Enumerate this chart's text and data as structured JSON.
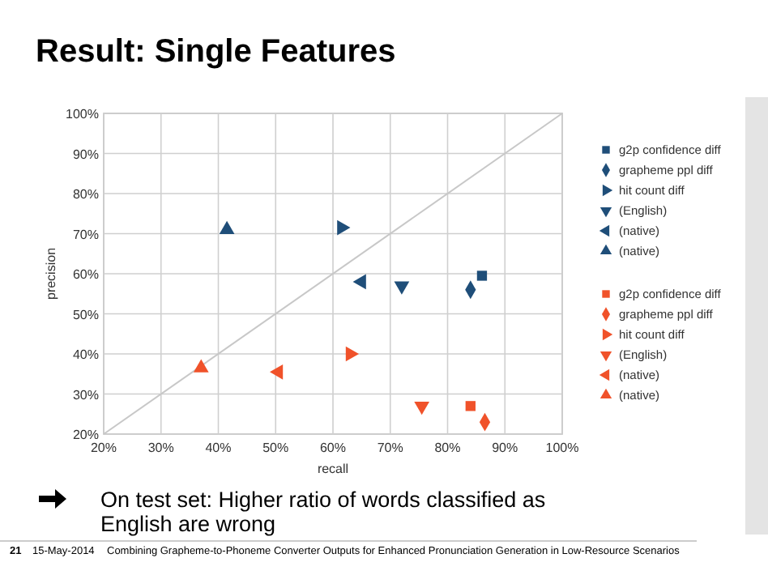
{
  "chart_data": {
    "type": "scatter",
    "title": "Result: Single Features",
    "xlabel": "recall",
    "ylabel": "precision",
    "xlim": [
      20,
      100
    ],
    "ylim": [
      20,
      100
    ],
    "xticks": [
      {
        "value": 20,
        "label": "20%"
      },
      {
        "value": 30,
        "label": "30%"
      },
      {
        "value": 40,
        "label": "40%"
      },
      {
        "value": 50,
        "label": "50%"
      },
      {
        "value": 60,
        "label": "60%"
      },
      {
        "value": 70,
        "label": "70%"
      },
      {
        "value": 80,
        "label": "80%"
      },
      {
        "value": 90,
        "label": "90%"
      },
      {
        "value": 100,
        "label": "100%"
      }
    ],
    "yticks": [
      {
        "value": 20,
        "label": "20%"
      },
      {
        "value": 30,
        "label": "30%"
      },
      {
        "value": 40,
        "label": "40%"
      },
      {
        "value": 50,
        "label": "50%"
      },
      {
        "value": 60,
        "label": "60%"
      },
      {
        "value": 70,
        "label": "70%"
      },
      {
        "value": 80,
        "label": "80%"
      },
      {
        "value": 90,
        "label": "90%"
      },
      {
        "value": 100,
        "label": "100%"
      }
    ],
    "grid": true,
    "legend": "right",
    "series": [
      {
        "type": "line",
        "color": "#c8c8c8",
        "x": [
          20,
          100
        ],
        "values": [
          20,
          100
        ],
        "marker": "none"
      },
      {
        "name": "g2p confidence diff",
        "color": "#1f4e79",
        "x": [
          86
        ],
        "values": [
          59.5
        ],
        "marker": "square"
      },
      {
        "name": "grapheme ppl diff",
        "color": "#1f4e79",
        "x": [
          84
        ],
        "values": [
          56
        ],
        "marker": "diamond"
      },
      {
        "name": "hit count diff",
        "color": "#1f4e79",
        "x": [
          61.5
        ],
        "values": [
          71.5
        ],
        "marker": "triangle-right"
      },
      {
        "name": "(English)",
        "color": "#1f4e79",
        "x": [
          72
        ],
        "values": [
          57
        ],
        "marker": "triangle-down"
      },
      {
        "name": "(native)",
        "color": "#1f4e79",
        "x": [
          65
        ],
        "values": [
          58
        ],
        "marker": "triangle-left"
      },
      {
        "name": "(native)",
        "color": "#1f4e79",
        "x": [
          41.5
        ],
        "values": [
          71
        ],
        "marker": "triangle"
      },
      {
        "name": "g2p confidence diff",
        "color": "#f0522a",
        "x": [
          84
        ],
        "values": [
          27
        ],
        "marker": "square"
      },
      {
        "name": "grapheme ppl diff",
        "color": "#f0522a",
        "x": [
          86.5
        ],
        "values": [
          23
        ],
        "marker": "diamond"
      },
      {
        "name": "hit count diff",
        "color": "#f0522a",
        "x": [
          63
        ],
        "values": [
          40
        ],
        "marker": "triangle-right"
      },
      {
        "name": "(English)",
        "color": "#f0522a",
        "x": [
          75.5
        ],
        "values": [
          27
        ],
        "marker": "triangle-down"
      },
      {
        "name": "(native)",
        "color": "#f0522a",
        "x": [
          50.5
        ],
        "values": [
          35.5
        ],
        "marker": "triangle-left"
      },
      {
        "name": "(native)",
        "color": "#f0522a",
        "x": [
          37
        ],
        "values": [
          36.5
        ],
        "marker": "triangle"
      }
    ],
    "annotations": [
      "On test set: Higher ratio of words classified as English are wrong",
      "21",
      "15-May-2014",
      "Combining Grapheme-to-Phoneme Converter Outputs for Enhanced Pronunciation Generation in Low-Resource Scenarios"
    ]
  }
}
